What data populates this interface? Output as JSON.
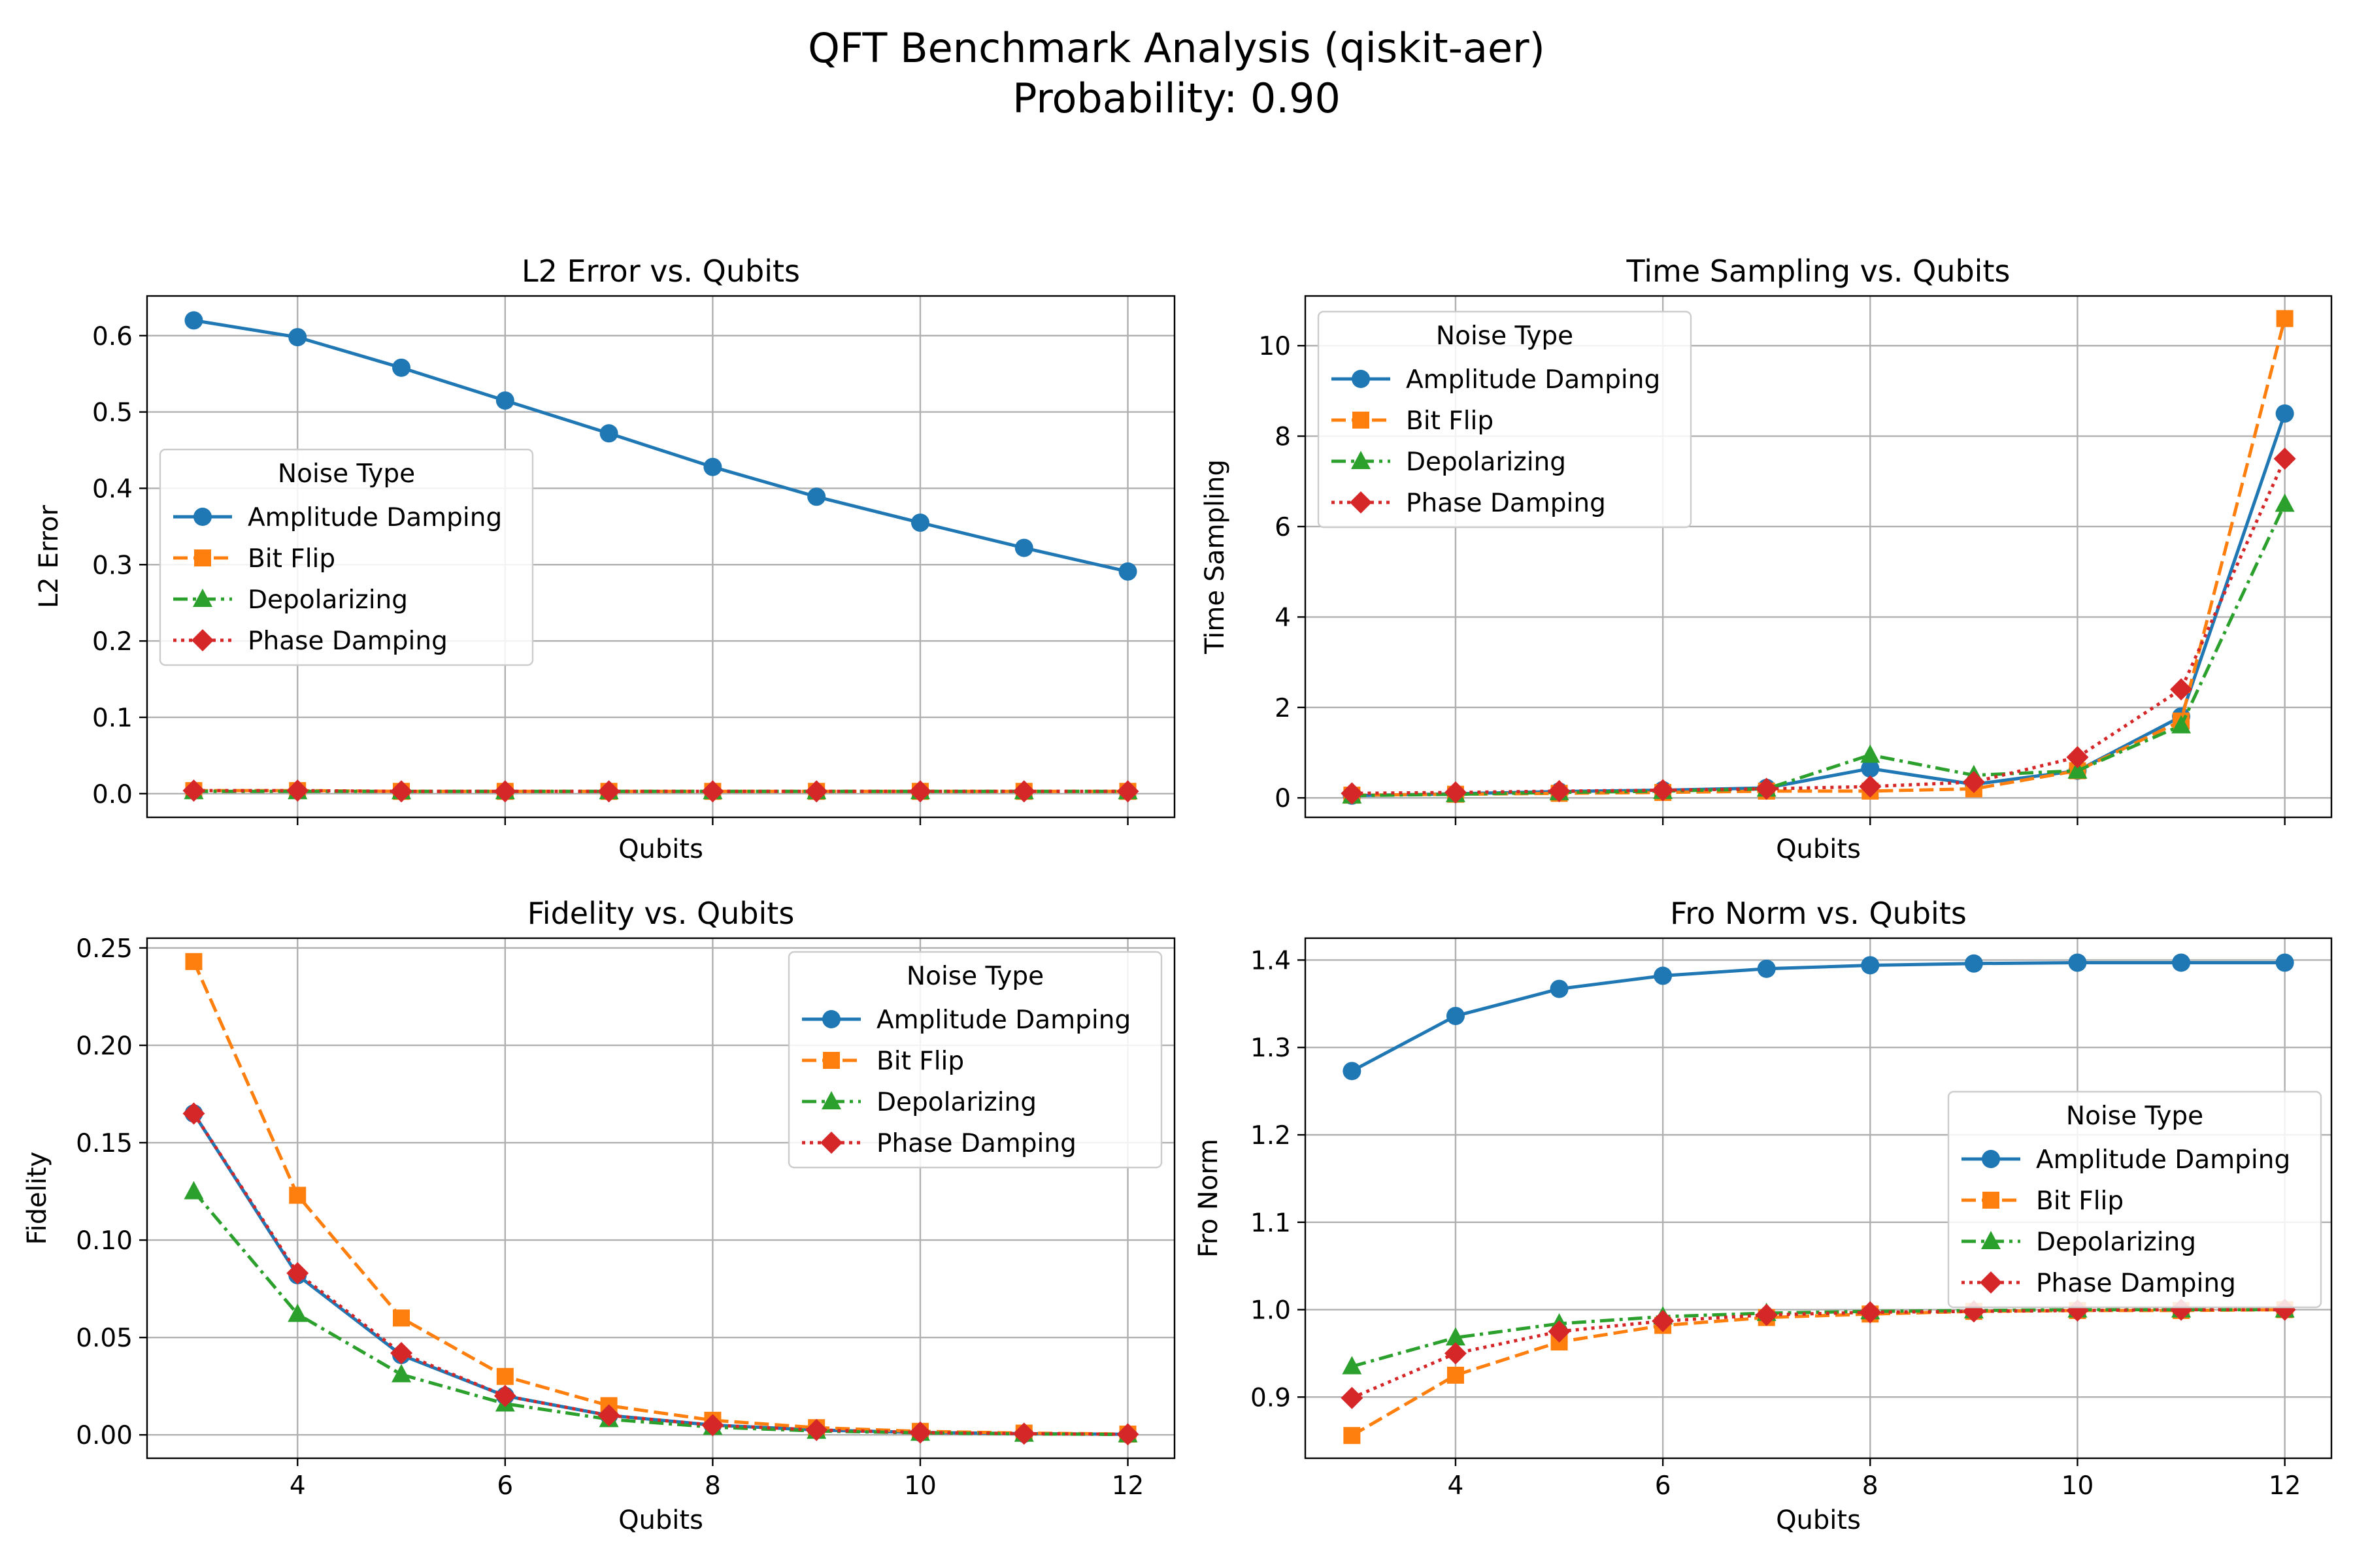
{
  "figure": {
    "title_line1": "QFT Benchmark Analysis (qiskit-aer)",
    "title_line2": "Probability: 0.90"
  },
  "series_styles": [
    {
      "name": "Amplitude Damping",
      "color": "#1f77b4",
      "marker": "circle",
      "dash": "solid"
    },
    {
      "name": "Bit Flip",
      "color": "#ff7f0e",
      "marker": "square",
      "dash": "dashed"
    },
    {
      "name": "Depolarizing",
      "color": "#2ca02c",
      "marker": "triangle",
      "dash": "dashdot"
    },
    {
      "name": "Phase Damping",
      "color": "#d62728",
      "marker": "diamond",
      "dash": "dotted"
    }
  ],
  "chart_data": [
    {
      "type": "line",
      "title": "L2 Error vs. Qubits",
      "xlabel": "Qubits",
      "ylabel": "L2 Error",
      "xlim": [
        2.55,
        12.45
      ],
      "ylim": [
        -0.031,
        0.652
      ],
      "xticks": [
        4,
        6,
        8,
        10,
        12
      ],
      "xtick_labels_visible": false,
      "yticks": [
        0.0,
        0.1,
        0.2,
        0.3,
        0.4,
        0.5,
        0.6
      ],
      "ytick_labels": [
        "0.0",
        "0.1",
        "0.2",
        "0.3",
        "0.4",
        "0.5",
        "0.6"
      ],
      "grid": true,
      "legend_title": "Noise Type",
      "legend_position": "center-left",
      "x": [
        3,
        4,
        5,
        6,
        7,
        8,
        9,
        10,
        11,
        12
      ],
      "series": [
        {
          "name": "Amplitude Damping",
          "values": [
            0.62,
            0.598,
            0.558,
            0.515,
            0.472,
            0.428,
            0.389,
            0.355,
            0.322,
            0.291
          ]
        },
        {
          "name": "Bit Flip",
          "values": [
            0.004,
            0.004,
            0.003,
            0.003,
            0.003,
            0.003,
            0.003,
            0.003,
            0.003,
            0.003
          ]
        },
        {
          "name": "Depolarizing",
          "values": [
            0.003,
            0.003,
            0.003,
            0.003,
            0.003,
            0.003,
            0.003,
            0.003,
            0.003,
            0.003
          ]
        },
        {
          "name": "Phase Damping",
          "values": [
            0.004,
            0.004,
            0.003,
            0.003,
            0.003,
            0.003,
            0.003,
            0.003,
            0.003,
            0.003
          ]
        }
      ]
    },
    {
      "type": "line",
      "title": "Time Sampling vs. Qubits",
      "xlabel": "Qubits",
      "ylabel": "Time Sampling",
      "xlim": [
        2.55,
        12.45
      ],
      "ylim": [
        -0.43,
        11.1
      ],
      "xticks": [
        4,
        6,
        8,
        10,
        12
      ],
      "xtick_labels_visible": false,
      "yticks": [
        0,
        2,
        4,
        6,
        8,
        10
      ],
      "ytick_labels": [
        "0",
        "2",
        "4",
        "6",
        "8",
        "10"
      ],
      "grid": true,
      "legend_title": "Noise Type",
      "legend_position": "upper-left",
      "x": [
        3,
        4,
        5,
        6,
        7,
        8,
        9,
        10,
        11,
        12
      ],
      "series": [
        {
          "name": "Amplitude Damping",
          "values": [
            0.05,
            0.09,
            0.14,
            0.17,
            0.22,
            0.65,
            0.3,
            0.6,
            1.8,
            8.5
          ]
        },
        {
          "name": "Bit Flip",
          "values": [
            0.06,
            0.08,
            0.1,
            0.12,
            0.15,
            0.15,
            0.2,
            0.6,
            1.7,
            10.6
          ]
        },
        {
          "name": "Depolarizing",
          "values": [
            0.05,
            0.08,
            0.12,
            0.15,
            0.2,
            0.95,
            0.5,
            0.6,
            1.6,
            6.5
          ]
        },
        {
          "name": "Phase Damping",
          "values": [
            0.1,
            0.12,
            0.15,
            0.17,
            0.2,
            0.25,
            0.35,
            0.9,
            2.4,
            7.5
          ]
        }
      ]
    },
    {
      "type": "line",
      "title": "Fidelity vs. Qubits",
      "xlabel": "Qubits",
      "ylabel": "Fidelity",
      "xlim": [
        2.55,
        12.45
      ],
      "ylim": [
        -0.012,
        0.255
      ],
      "xticks": [
        4,
        6,
        8,
        10,
        12
      ],
      "xtick_labels": [
        "4",
        "6",
        "8",
        "10",
        "12"
      ],
      "yticks": [
        0.0,
        0.05,
        0.1,
        0.15,
        0.2,
        0.25
      ],
      "ytick_labels": [
        "0.00",
        "0.05",
        "0.10",
        "0.15",
        "0.20",
        "0.25"
      ],
      "grid": true,
      "legend_title": "Noise Type",
      "legend_position": "upper-right",
      "x": [
        3,
        4,
        5,
        6,
        7,
        8,
        9,
        10,
        11,
        12
      ],
      "series": [
        {
          "name": "Amplitude Damping",
          "values": [
            0.165,
            0.082,
            0.041,
            0.02,
            0.01,
            0.005,
            0.0025,
            0.0012,
            0.0006,
            0.0003
          ]
        },
        {
          "name": "Bit Flip",
          "values": [
            0.243,
            0.123,
            0.06,
            0.03,
            0.015,
            0.0075,
            0.0037,
            0.0018,
            0.0009,
            0.0004
          ]
        },
        {
          "name": "Depolarizing",
          "values": [
            0.125,
            0.062,
            0.031,
            0.016,
            0.008,
            0.004,
            0.002,
            0.001,
            0.0005,
            0.0002
          ]
        },
        {
          "name": "Phase Damping",
          "values": [
            0.165,
            0.083,
            0.042,
            0.02,
            0.01,
            0.005,
            0.0025,
            0.0012,
            0.0006,
            0.0003
          ]
        }
      ]
    },
    {
      "type": "line",
      "title": "Fro Norm vs. Qubits",
      "xlabel": "Qubits",
      "ylabel": "Fro Norm",
      "xlim": [
        2.55,
        12.45
      ],
      "ylim": [
        0.83,
        1.425
      ],
      "xticks": [
        4,
        6,
        8,
        10,
        12
      ],
      "xtick_labels": [
        "4",
        "6",
        "8",
        "10",
        "12"
      ],
      "yticks": [
        0.9,
        1.0,
        1.1,
        1.2,
        1.3,
        1.4
      ],
      "ytick_labels": [
        "0.9",
        "1.0",
        "1.1",
        "1.2",
        "1.3",
        "1.4"
      ],
      "grid": true,
      "legend_title": "Noise Type",
      "legend_position": "center-right",
      "x": [
        3,
        4,
        5,
        6,
        7,
        8,
        9,
        10,
        11,
        12
      ],
      "series": [
        {
          "name": "Amplitude Damping",
          "values": [
            1.273,
            1.336,
            1.367,
            1.382,
            1.39,
            1.394,
            1.396,
            1.397,
            1.397,
            1.397
          ]
        },
        {
          "name": "Bit Flip",
          "values": [
            0.856,
            0.925,
            0.963,
            0.982,
            0.991,
            0.995,
            0.998,
            0.999,
            0.999,
            1.0
          ]
        },
        {
          "name": "Depolarizing",
          "values": [
            0.935,
            0.968,
            0.984,
            0.992,
            0.996,
            0.998,
            0.999,
            1.0,
            1.0,
            1.0
          ]
        },
        {
          "name": "Phase Damping",
          "values": [
            0.899,
            0.95,
            0.975,
            0.987,
            0.994,
            0.997,
            0.998,
            0.999,
            1.0,
            1.0
          ]
        }
      ]
    }
  ]
}
